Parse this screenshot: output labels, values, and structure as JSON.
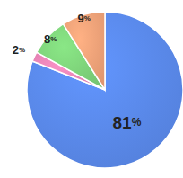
{
  "chart_data": {
    "type": "pie",
    "categories": [
      null,
      null,
      null,
      null
    ],
    "values": [
      81,
      2,
      8,
      9
    ],
    "value_labels": [
      "81%",
      "2%",
      "8%",
      "9%"
    ],
    "colors": [
      "#5b8bee",
      "#e986b8",
      "#80d67c",
      "#f3a47a"
    ],
    "data_labels": true
  }
}
